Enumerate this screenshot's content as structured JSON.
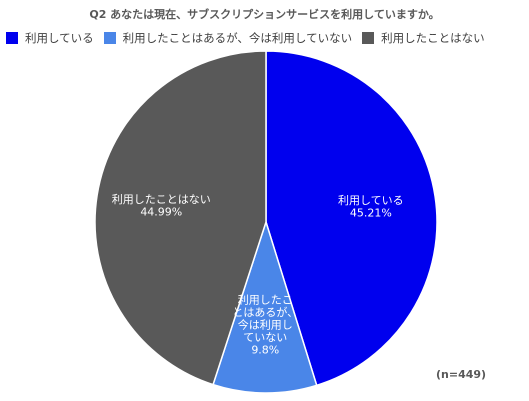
{
  "chart_data": {
    "type": "pie",
    "title": "Q2 あなたは現在、サブスクリプションサービスを利用していますか。",
    "categories": [
      "利用している",
      "利用したことはあるが、今は利用していない",
      "利用したことはない"
    ],
    "values": [
      45.21,
      9.8,
      44.99
    ],
    "value_labels": [
      "45.21%",
      "9.8%",
      "44.99%"
    ],
    "slice_label_lines": [
      [
        "利用している"
      ],
      [
        "利用したこ",
        "とはあるが、",
        "今は利用し",
        "ていない"
      ],
      [
        "利用したことはない"
      ]
    ],
    "colors": [
      "#0000ee",
      "#4a86e8",
      "#595959"
    ],
    "legend_position": "top-left",
    "start": "12 o'clock, clockwise",
    "note": "(n=449)"
  }
}
